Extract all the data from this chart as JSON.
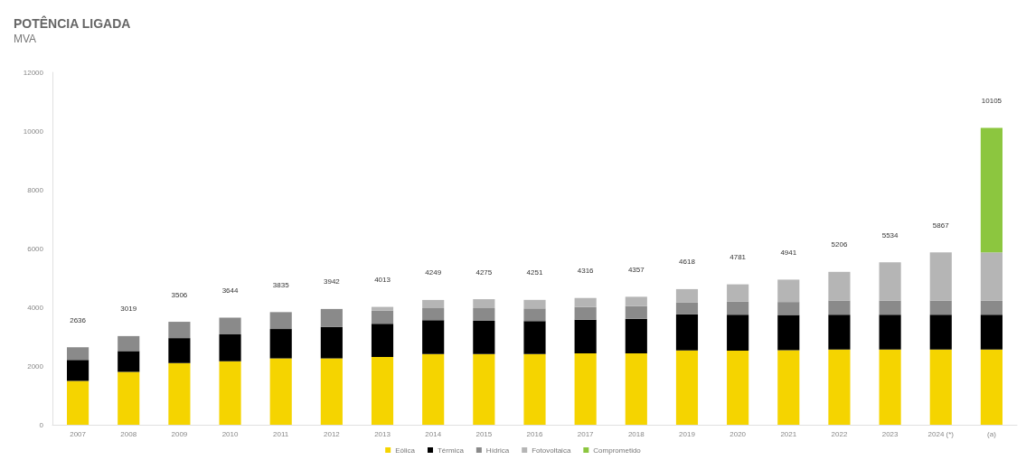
{
  "chart_data": {
    "type": "bar",
    "title": "POTÊNCIA LIGADA",
    "subtitle": "MVA",
    "categories": [
      "2007",
      "2008",
      "2009",
      "2010",
      "2011",
      "2012",
      "2013",
      "2014",
      "2015",
      "2016",
      "2017",
      "2018",
      "2019",
      "2020",
      "2021",
      "2022",
      "2023",
      "2024 (*)",
      "(a)"
    ],
    "stacked": true,
    "series": [
      {
        "name": "Eólica",
        "color": "#f5d400",
        "values": [
          1490,
          1800,
          2100,
          2160,
          2260,
          2260,
          2310,
          2410,
          2410,
          2410,
          2430,
          2430,
          2530,
          2520,
          2540,
          2560,
          2560,
          2560,
          2560
        ]
      },
      {
        "name": "Térmica",
        "color": "#000000",
        "values": [
          720,
          710,
          850,
          920,
          1000,
          1070,
          1130,
          1150,
          1130,
          1120,
          1150,
          1180,
          1230,
          1230,
          1200,
          1190,
          1190,
          1190,
          1190
        ]
      },
      {
        "name": "Hídrica",
        "color": "#8a8a8a",
        "values": [
          426,
          509,
          556,
          564,
          575,
          612,
          450,
          410,
          430,
          430,
          430,
          430,
          410,
          440,
          440,
          480,
          480,
          480,
          480
        ]
      },
      {
        "name": "Fotovoltaica",
        "color": "#b5b5b5",
        "values": [
          null,
          null,
          null,
          null,
          null,
          null,
          123,
          279,
          305,
          291,
          306,
          317,
          448,
          591,
          761,
          976,
          1304,
          1637,
          1637
        ]
      },
      {
        "name": "Comprometido",
        "color": "#8cc63f",
        "values": [
          null,
          null,
          null,
          null,
          null,
          null,
          null,
          null,
          null,
          null,
          null,
          null,
          null,
          null,
          null,
          null,
          null,
          null,
          4238
        ]
      }
    ],
    "totals": [
      "2636",
      "3019",
      "3506",
      "3644",
      "3835",
      "3942",
      "4013",
      "4249",
      "4275",
      "4251",
      "4316",
      "4357",
      "4618",
      "4781",
      "4941",
      "5206",
      "5534",
      "5867",
      "10105"
    ],
    "ylim": [
      0,
      12000
    ],
    "yticks": [
      0,
      2000,
      4000,
      6000,
      8000,
      10000,
      12000
    ],
    "legend": "bottom"
  }
}
